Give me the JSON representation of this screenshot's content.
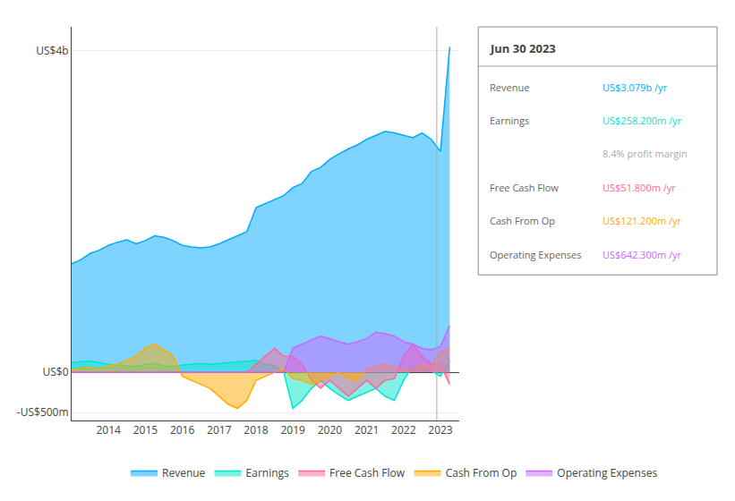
{
  "chart_data": {
    "type": "area",
    "title": "Jun 30 2023",
    "x": [
      2013.0,
      2013.25,
      2013.5,
      2013.75,
      2014.0,
      2014.25,
      2014.5,
      2014.75,
      2015.0,
      2015.25,
      2015.5,
      2015.75,
      2016.0,
      2016.25,
      2016.5,
      2016.75,
      2017.0,
      2017.25,
      2017.5,
      2017.75,
      2018.0,
      2018.25,
      2018.5,
      2018.75,
      2019.0,
      2019.25,
      2019.5,
      2019.75,
      2020.0,
      2020.25,
      2020.5,
      2020.75,
      2021.0,
      2021.25,
      2021.5,
      2021.75,
      2022.0,
      2022.25,
      2022.5,
      2022.75,
      2023.0,
      2023.25
    ],
    "series": [
      {
        "name": "Revenue",
        "color": "#00aaff",
        "values": [
          1350,
          1400,
          1480,
          1520,
          1580,
          1620,
          1650,
          1600,
          1640,
          1700,
          1680,
          1640,
          1580,
          1560,
          1550,
          1560,
          1600,
          1650,
          1700,
          1750,
          2050,
          2100,
          2150,
          2200,
          2300,
          2350,
          2500,
          2550,
          2650,
          2720,
          2780,
          2830,
          2900,
          2950,
          3000,
          2980,
          2950,
          2920,
          2980,
          2900,
          2750,
          4050
        ]
      },
      {
        "name": "Earnings",
        "color": "#00e5cc",
        "values": [
          120,
          130,
          140,
          120,
          100,
          90,
          80,
          70,
          100,
          110,
          80,
          70,
          90,
          100,
          110,
          100,
          110,
          120,
          130,
          140,
          150,
          100,
          80,
          0,
          -450,
          -350,
          -200,
          -100,
          -200,
          -280,
          -350,
          -300,
          -250,
          -200,
          -300,
          -350,
          -100,
          80,
          50,
          20,
          -50,
          150
        ]
      },
      {
        "name": "Free Cash Flow",
        "color": "#ff6699",
        "values": [
          0,
          0,
          0,
          0,
          0,
          0,
          0,
          0,
          0,
          0,
          0,
          0,
          0,
          0,
          0,
          0,
          0,
          0,
          0,
          0,
          100,
          200,
          300,
          200,
          200,
          100,
          -100,
          -200,
          -100,
          -200,
          -300,
          -200,
          -100,
          -200,
          -100,
          -80,
          200,
          350,
          200,
          100,
          100,
          -150
        ]
      },
      {
        "name": "Cash From Op",
        "color": "#ffaa00",
        "values": [
          30,
          50,
          60,
          40,
          80,
          100,
          150,
          200,
          300,
          350,
          280,
          200,
          -50,
          -100,
          -150,
          -200,
          -300,
          -400,
          -450,
          -350,
          -100,
          -50,
          0,
          50,
          -80,
          -100,
          -150,
          -100,
          -50,
          0,
          -80,
          -100,
          50,
          80,
          100,
          60,
          20,
          50,
          100,
          80,
          250,
          300
        ]
      },
      {
        "name": "Operating Expenses",
        "color": "#cc66ff",
        "values": [
          0,
          0,
          0,
          0,
          0,
          0,
          0,
          0,
          0,
          0,
          0,
          0,
          0,
          0,
          0,
          0,
          0,
          0,
          0,
          0,
          0,
          0,
          0,
          0,
          300,
          350,
          400,
          450,
          420,
          380,
          350,
          380,
          420,
          500,
          480,
          450,
          380,
          350,
          300,
          280,
          320,
          580
        ]
      }
    ],
    "xlim": [
      2013.0,
      2023.5
    ],
    "xticks": [
      2014,
      2015,
      2016,
      2017,
      2018,
      2019,
      2020,
      2021,
      2022,
      2023
    ],
    "ylim": [
      -600,
      4300
    ],
    "yticks": [
      {
        "value": 4000,
        "label": "US$4b"
      },
      {
        "value": 0,
        "label": "US$0"
      },
      {
        "value": -500,
        "label": "-US$500m"
      }
    ],
    "grid": true,
    "legend": "bottom",
    "highlight_x": 2022.9,
    "annotations": [
      {
        "label": "Revenue",
        "text": "US$3.079b /yr",
        "color": "#00aaff"
      },
      {
        "label": "Earnings",
        "text": "US$258.200m /yr",
        "color": "#00e5cc"
      },
      {
        "text": "8.4% profit margin",
        "color": "#aaaaaa"
      },
      {
        "label": "Free Cash Flow",
        "text": "US$51.800m /yr",
        "color": "#ff6699"
      },
      {
        "label": "Cash From Op",
        "text": "US$121.200m /yr",
        "color": "#ffaa00"
      },
      {
        "label": "Operating Expenses",
        "text": "US$642.300m /yr",
        "color": "#cc66ff"
      }
    ]
  }
}
